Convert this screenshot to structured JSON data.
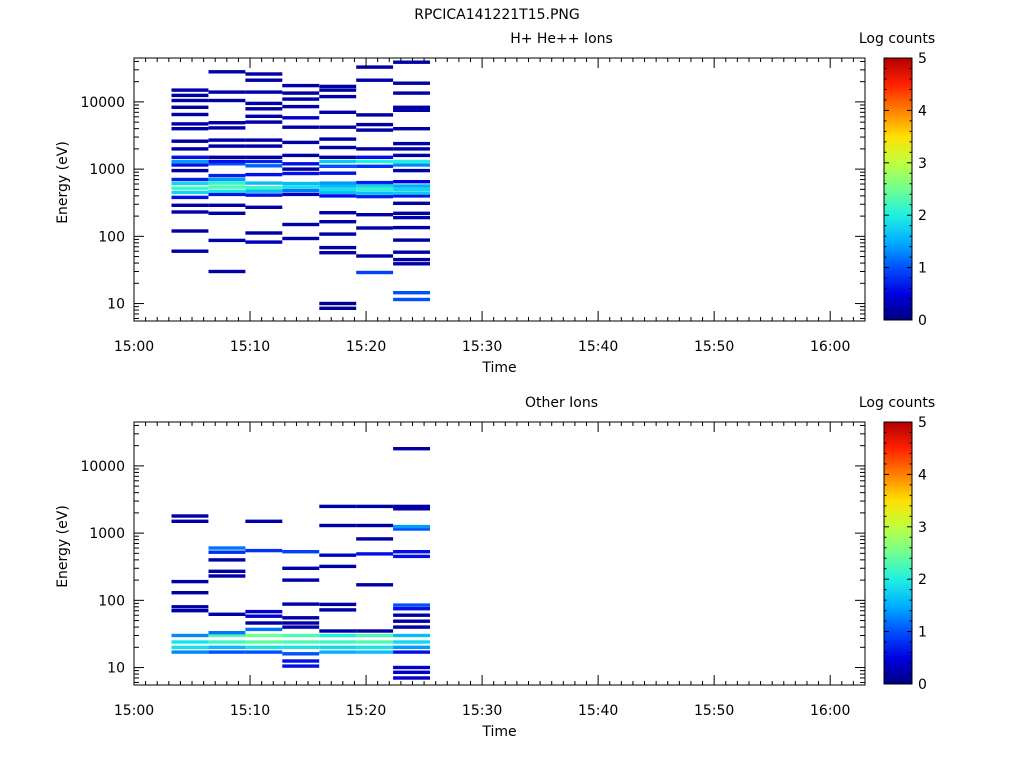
{
  "figure_title": "RPCICA141221T15.PNG",
  "colormap": [
    "#000080",
    "#0000e0",
    "#0050ff",
    "#00b0ff",
    "#20f0e0",
    "#70ff90",
    "#c0ff40",
    "#ffe000",
    "#ff8000",
    "#ff2000",
    "#b00000"
  ],
  "chart_data": [
    {
      "type": "heatmap",
      "title": "H+ He++ Ions",
      "xlabel": "Time",
      "ylabel": "Energy (eV)",
      "xlim": [
        "15:00",
        "16:03"
      ],
      "ylim": [
        5.5,
        45000
      ],
      "yscale": "log",
      "xticks": [
        "15:00",
        "15:10",
        "15:20",
        "15:30",
        "15:40",
        "15:50",
        "16:00"
      ],
      "yticks": [
        10,
        100,
        1000,
        10000
      ],
      "yticklabels": [
        "10",
        "100",
        "1000",
        "10000"
      ],
      "colorbar": {
        "label": "Log counts",
        "min": 0,
        "max": 5,
        "ticks": [
          "0",
          "1",
          "2",
          "3",
          "4",
          "5"
        ]
      },
      "time_bins": [
        {
          "start": "15:03:14",
          "end": "15:06:25"
        },
        {
          "start": "15:06:25",
          "end": "15:09:36"
        },
        {
          "start": "15:09:36",
          "end": "15:12:47"
        },
        {
          "start": "15:12:47",
          "end": "15:15:58"
        },
        {
          "start": "15:15:58",
          "end": "15:19:09"
        },
        {
          "start": "15:19:09",
          "end": "15:22:20"
        },
        {
          "start": "15:22:20",
          "end": "15:25:31"
        }
      ],
      "cells": [
        [
          0,
          60,
          0.2
        ],
        [
          0,
          120,
          0.2
        ],
        [
          0,
          230,
          0.2
        ],
        [
          0,
          290,
          0.2
        ],
        [
          0,
          380,
          0.6
        ],
        [
          0,
          450,
          1.8
        ],
        [
          0,
          520,
          2.2
        ],
        [
          0,
          610,
          1.8
        ],
        [
          0,
          700,
          0.7
        ],
        [
          0,
          950,
          0.2
        ],
        [
          0,
          1150,
          0.6
        ],
        [
          0,
          1300,
          1.4
        ],
        [
          0,
          1500,
          0.6
        ],
        [
          0,
          2000,
          0.2
        ],
        [
          0,
          2600,
          0.2
        ],
        [
          0,
          4000,
          0.2
        ],
        [
          0,
          4700,
          0.2
        ],
        [
          0,
          6500,
          0.2
        ],
        [
          0,
          8300,
          0.2
        ],
        [
          0,
          10500,
          0.2
        ],
        [
          0,
          12500,
          0.2
        ],
        [
          0,
          15000,
          0.2
        ],
        [
          1,
          30,
          0.2
        ],
        [
          1,
          87,
          0.2
        ],
        [
          1,
          220,
          0.2
        ],
        [
          1,
          290,
          0.2
        ],
        [
          1,
          420,
          0.6
        ],
        [
          1,
          470,
          1.9
        ],
        [
          1,
          540,
          2.3
        ],
        [
          1,
          620,
          2.1
        ],
        [
          1,
          700,
          1.4
        ],
        [
          1,
          800,
          0.7
        ],
        [
          1,
          1200,
          1.0
        ],
        [
          1,
          1300,
          0.6
        ],
        [
          1,
          1500,
          0.2
        ],
        [
          1,
          2200,
          0.2
        ],
        [
          1,
          2700,
          0.2
        ],
        [
          1,
          4100,
          0.2
        ],
        [
          1,
          4900,
          0.2
        ],
        [
          1,
          10500,
          0.2
        ],
        [
          1,
          14000,
          0.2
        ],
        [
          1,
          28000,
          0.2
        ],
        [
          2,
          82,
          0.3
        ],
        [
          2,
          112,
          0.2
        ],
        [
          2,
          270,
          0.2
        ],
        [
          2,
          410,
          0.6
        ],
        [
          2,
          470,
          1.6
        ],
        [
          2,
          530,
          2.2
        ],
        [
          2,
          620,
          1.6
        ],
        [
          2,
          830,
          0.6
        ],
        [
          2,
          1120,
          1.1
        ],
        [
          2,
          1300,
          0.7
        ],
        [
          2,
          1500,
          0.2
        ],
        [
          2,
          2200,
          0.2
        ],
        [
          2,
          2700,
          0.2
        ],
        [
          2,
          5000,
          0.2
        ],
        [
          2,
          6100,
          0.2
        ],
        [
          2,
          7900,
          0.2
        ],
        [
          2,
          9500,
          0.2
        ],
        [
          2,
          14000,
          0.2
        ],
        [
          2,
          21000,
          0.2
        ],
        [
          2,
          26000,
          0.2
        ],
        [
          3,
          93,
          0.2
        ],
        [
          3,
          150,
          0.2
        ],
        [
          3,
          420,
          0.3
        ],
        [
          3,
          480,
          1.2
        ],
        [
          3,
          540,
          1.9
        ],
        [
          3,
          610,
          1.6
        ],
        [
          3,
          860,
          0.6
        ],
        [
          3,
          1000,
          0.2
        ],
        [
          3,
          1200,
          0.6
        ],
        [
          3,
          1600,
          0.2
        ],
        [
          3,
          2500,
          0.2
        ],
        [
          3,
          4200,
          0.2
        ],
        [
          3,
          5800,
          0.4
        ],
        [
          3,
          8500,
          0.2
        ],
        [
          3,
          11000,
          0.2
        ],
        [
          3,
          13500,
          0.2
        ],
        [
          3,
          17500,
          0.2
        ],
        [
          4,
          57,
          0.2
        ],
        [
          4,
          68,
          0.2
        ],
        [
          4,
          108,
          0.2
        ],
        [
          4,
          165,
          0.2
        ],
        [
          4,
          225,
          0.2
        ],
        [
          4,
          400,
          0.6
        ],
        [
          4,
          450,
          1.6
        ],
        [
          4,
          500,
          1.9
        ],
        [
          4,
          560,
          1.6
        ],
        [
          4,
          620,
          1.4
        ],
        [
          4,
          870,
          0.6
        ],
        [
          4,
          1100,
          1.0
        ],
        [
          4,
          1300,
          1.7
        ],
        [
          4,
          1500,
          0.2
        ],
        [
          4,
          2100,
          0.2
        ],
        [
          4,
          2800,
          0.2
        ],
        [
          4,
          4200,
          0.2
        ],
        [
          4,
          7000,
          0.2
        ],
        [
          4,
          12000,
          0.2
        ],
        [
          4,
          15000,
          0.2
        ],
        [
          4,
          17000,
          0.2
        ],
        [
          4,
          8.5,
          0.1
        ],
        [
          4,
          10,
          0.1
        ],
        [
          5,
          29,
          0.9
        ],
        [
          5,
          51,
          0.2
        ],
        [
          5,
          133,
          0.2
        ],
        [
          5,
          210,
          0.2
        ],
        [
          5,
          390,
          0.7
        ],
        [
          5,
          440,
          1.6
        ],
        [
          5,
          500,
          2.1
        ],
        [
          5,
          560,
          1.8
        ],
        [
          5,
          630,
          0.7
        ],
        [
          5,
          1100,
          0.8
        ],
        [
          5,
          1300,
          2.0
        ],
        [
          5,
          1500,
          0.6
        ],
        [
          5,
          2000,
          0.2
        ],
        [
          5,
          3800,
          0.2
        ],
        [
          5,
          4600,
          0.2
        ],
        [
          5,
          6400,
          0.2
        ],
        [
          5,
          21000,
          0.2
        ],
        [
          5,
          33000,
          0.2
        ],
        [
          6,
          11.5,
          1.0
        ],
        [
          6,
          14.5,
          1.0
        ],
        [
          6,
          39,
          0.2
        ],
        [
          6,
          45,
          0.2
        ],
        [
          6,
          58,
          0.2
        ],
        [
          6,
          88,
          0.2
        ],
        [
          6,
          135,
          0.2
        ],
        [
          6,
          190,
          0.2
        ],
        [
          6,
          220,
          0.2
        ],
        [
          6,
          310,
          0.2
        ],
        [
          6,
          400,
          0.6
        ],
        [
          6,
          440,
          1.7
        ],
        [
          6,
          500,
          1.8
        ],
        [
          6,
          560,
          1.5
        ],
        [
          6,
          650,
          0.5
        ],
        [
          6,
          950,
          0.2
        ],
        [
          6,
          1150,
          1.3
        ],
        [
          6,
          1300,
          2.0
        ],
        [
          6,
          1600,
          0.2
        ],
        [
          6,
          2000,
          0.2
        ],
        [
          6,
          2400,
          0.2
        ],
        [
          6,
          4000,
          0.2
        ],
        [
          6,
          7500,
          0.2
        ],
        [
          6,
          8300,
          0.2
        ],
        [
          6,
          13500,
          0.2
        ],
        [
          6,
          19000,
          0.2
        ],
        [
          6,
          39000,
          0.2
        ]
      ]
    },
    {
      "type": "heatmap",
      "title": "Other Ions",
      "xlabel": "Time",
      "ylabel": "Energy (eV)",
      "xlim": [
        "15:00",
        "16:03"
      ],
      "ylim": [
        5.5,
        45000
      ],
      "yscale": "log",
      "xticks": [
        "15:00",
        "15:10",
        "15:20",
        "15:30",
        "15:40",
        "15:50",
        "16:00"
      ],
      "yticks": [
        10,
        100,
        1000,
        10000
      ],
      "yticklabels": [
        "10",
        "100",
        "1000",
        "10000"
      ],
      "colorbar": {
        "label": "Log counts",
        "min": 0,
        "max": 5,
        "ticks": [
          "0",
          "1",
          "2",
          "3",
          "4",
          "5"
        ]
      },
      "time_bins": [
        {
          "start": "15:03:14",
          "end": "15:06:25"
        },
        {
          "start": "15:06:25",
          "end": "15:09:36"
        },
        {
          "start": "15:09:36",
          "end": "15:12:47"
        },
        {
          "start": "15:12:47",
          "end": "15:15:58"
        },
        {
          "start": "15:15:58",
          "end": "15:19:09"
        },
        {
          "start": "15:19:09",
          "end": "15:22:20"
        },
        {
          "start": "15:22:20",
          "end": "15:25:31"
        }
      ],
      "cells": [
        [
          0,
          17,
          1.3
        ],
        [
          0,
          20,
          1.9
        ],
        [
          0,
          24,
          1.9
        ],
        [
          0,
          30,
          1.3
        ],
        [
          0,
          70,
          0.2
        ],
        [
          0,
          80,
          0.2
        ],
        [
          0,
          130,
          0.2
        ],
        [
          0,
          190,
          0.2
        ],
        [
          0,
          1500,
          0.2
        ],
        [
          0,
          1800,
          0.2
        ],
        [
          1,
          17,
          1.0
        ],
        [
          1,
          20,
          1.6
        ],
        [
          1,
          24,
          2.2
        ],
        [
          1,
          30,
          2.3
        ],
        [
          1,
          33,
          1.2
        ],
        [
          1,
          62,
          0.2
        ],
        [
          1,
          230,
          0.2
        ],
        [
          1,
          270,
          0.2
        ],
        [
          1,
          400,
          0.2
        ],
        [
          1,
          520,
          0.8
        ],
        [
          1,
          600,
          1.2
        ],
        [
          2,
          17,
          1.0
        ],
        [
          2,
          20,
          1.9
        ],
        [
          2,
          24,
          2.4
        ],
        [
          2,
          30,
          2.5
        ],
        [
          2,
          37,
          1.2
        ],
        [
          2,
          46,
          0.2
        ],
        [
          2,
          58,
          0.4
        ],
        [
          2,
          68,
          0.4
        ],
        [
          2,
          550,
          0.8
        ],
        [
          2,
          1500,
          0.2
        ],
        [
          3,
          10.5,
          0.6
        ],
        [
          3,
          12.5,
          0.6
        ],
        [
          3,
          16,
          1.0
        ],
        [
          3,
          20,
          1.9
        ],
        [
          3,
          24,
          2.3
        ],
        [
          3,
          30,
          2.3
        ],
        [
          3,
          40,
          0.2
        ],
        [
          3,
          46,
          0.2
        ],
        [
          3,
          55,
          0.2
        ],
        [
          3,
          88,
          0.2
        ],
        [
          3,
          200,
          0.2
        ],
        [
          3,
          300,
          0.2
        ],
        [
          3,
          530,
          0.9
        ],
        [
          4,
          17,
          1.5
        ],
        [
          4,
          20,
          1.8
        ],
        [
          4,
          24,
          2.2
        ],
        [
          4,
          30,
          2.0
        ],
        [
          4,
          35,
          0.2
        ],
        [
          4,
          72,
          0.2
        ],
        [
          4,
          87,
          0.2
        ],
        [
          4,
          320,
          0.2
        ],
        [
          4,
          470,
          0.4
        ],
        [
          4,
          1300,
          0.2
        ],
        [
          4,
          2500,
          0.2
        ],
        [
          5,
          17,
          1.6
        ],
        [
          5,
          20,
          1.9
        ],
        [
          5,
          24,
          2.3
        ],
        [
          5,
          30,
          2.3
        ],
        [
          5,
          35,
          0.2
        ],
        [
          5,
          170,
          0.2
        ],
        [
          5,
          490,
          0.6
        ],
        [
          5,
          820,
          0.2
        ],
        [
          5,
          1300,
          0.2
        ],
        [
          5,
          2500,
          0.2
        ],
        [
          6,
          7,
          0.4
        ],
        [
          6,
          8.5,
          0.4
        ],
        [
          6,
          10,
          0.4
        ],
        [
          6,
          17,
          0.6
        ],
        [
          6,
          20,
          1.4
        ],
        [
          6,
          24,
          1.8
        ],
        [
          6,
          30,
          1.6
        ],
        [
          6,
          40,
          0.2
        ],
        [
          6,
          49,
          0.2
        ],
        [
          6,
          60,
          0.2
        ],
        [
          6,
          75,
          0.6
        ],
        [
          6,
          85,
          1.0
        ],
        [
          6,
          450,
          0.6
        ],
        [
          6,
          530,
          0.6
        ],
        [
          6,
          1150,
          1.0
        ],
        [
          6,
          1250,
          1.4
        ],
        [
          6,
          2300,
          0.2
        ],
        [
          6,
          2500,
          0.2
        ],
        [
          6,
          18000,
          0.2
        ]
      ]
    }
  ]
}
